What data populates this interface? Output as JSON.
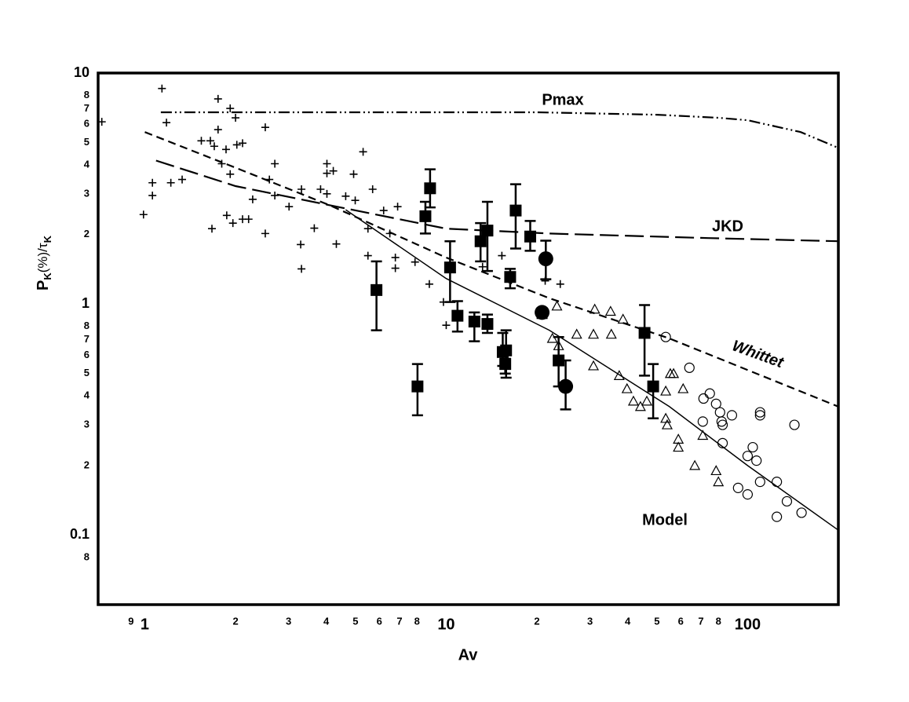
{
  "chart_data": {
    "type": "scatter",
    "xlabel": "Av",
    "ylabel": [
      "P",
      "K",
      "(%)/τ",
      "K"
    ],
    "log_x": true,
    "log_y": true,
    "grid": false,
    "xlim": [
      0.7,
      200
    ],
    "ylim": [
      0.05,
      10
    ],
    "xticks": [
      {
        "value": 0.9,
        "label": "9"
      },
      1,
      2,
      3,
      4,
      5,
      6,
      7,
      8,
      10,
      {
        "value": 20,
        "label": "2"
      },
      {
        "value": 30,
        "label": "3"
      },
      {
        "value": 40,
        "label": "4"
      },
      {
        "value": 50,
        "label": "5"
      },
      {
        "value": 60,
        "label": "6"
      },
      {
        "value": 70,
        "label": "7"
      },
      {
        "value": 80,
        "label": "8"
      },
      100
    ],
    "yticks": [
      {
        "value": 0.08,
        "label": "8"
      },
      0.1,
      {
        "value": 0.2,
        "label": "2"
      },
      {
        "value": 0.3,
        "label": "3"
      },
      {
        "value": 0.4,
        "label": "4"
      },
      {
        "value": 0.5,
        "label": "5"
      },
      {
        "value": 0.6,
        "label": "6"
      },
      {
        "value": 0.7,
        "label": "7"
      },
      {
        "value": 0.8,
        "label": "8"
      },
      1,
      2,
      3,
      4,
      5,
      6,
      7,
      8,
      10
    ],
    "series": [
      {
        "marker": "plus",
        "color": "#000000",
        "x": [
          0.72,
          0.99,
          1.06,
          1.06,
          1.14,
          1.18,
          1.22,
          1.33,
          1.54,
          1.65,
          1.67,
          1.7,
          1.75,
          1.75,
          1.8,
          1.86,
          1.87,
          1.92,
          1.92,
          1.96,
          2.0,
          2.02,
          2.11,
          2.11,
          2.21,
          2.28,
          2.51,
          2.51,
          2.59,
          2.7,
          2.7,
          3.01,
          3.29,
          3.31,
          3.31,
          3.65,
          3.83,
          4.02,
          4.02,
          4.02,
          4.22,
          4.32,
          4.64,
          4.93,
          4.99,
          5.3,
          5.5,
          5.5,
          5.7,
          6.2,
          6.5,
          6.78,
          6.78,
          6.9,
          7.88,
          8.79,
          9.79,
          10.0,
          13.2,
          15.3,
          21.3,
          23.9
        ],
        "values": [
          6.15,
          2.44,
          3.35,
          2.95,
          8.57,
          6.1,
          3.35,
          3.46,
          5.09,
          5.09,
          2.12,
          4.82,
          7.73,
          5.69,
          4.05,
          4.67,
          2.42,
          7.03,
          3.65,
          2.24,
          6.4,
          4.89,
          4.97,
          2.33,
          2.33,
          2.84,
          5.82,
          2.02,
          3.46,
          4.05,
          2.95,
          2.64,
          1.81,
          3.14,
          1.42,
          2.13,
          3.14,
          4.05,
          3.68,
          3.0,
          3.77,
          1.82,
          2.93,
          3.65,
          2.81,
          4.56,
          2.12,
          1.62,
          3.14,
          2.54,
          2.02,
          1.59,
          1.43,
          2.64,
          1.52,
          1.22,
          1.02,
          0.81,
          1.45,
          1.62,
          1.26,
          1.22
        ]
      },
      {
        "marker": "square",
        "color": "#000000",
        "x": [
          5.87,
          8.03,
          8.53,
          8.84,
          10.3,
          10.9,
          12.4,
          13.0,
          13.7,
          13.7,
          15.4,
          15.8,
          15.7,
          16.3,
          17.0,
          19.0,
          23.6,
          45.5,
          48.6
        ],
        "values": [
          1.15,
          0.44,
          2.4,
          3.17,
          1.44,
          0.89,
          0.84,
          1.87,
          2.08,
          0.82,
          0.62,
          0.63,
          0.55,
          1.31,
          2.54,
          1.96,
          0.57,
          0.75,
          0.44
        ],
        "err_low": [
          0.77,
          0.33,
          2.02,
          2.62,
          1.02,
          0.76,
          0.69,
          1.53,
          1.39,
          0.75,
          0.54,
          0.48,
          0.5,
          1.17,
          1.74,
          1.7,
          0.44,
          0.49,
          0.32
        ],
        "err_high": [
          1.53,
          0.55,
          2.77,
          3.83,
          1.87,
          1.03,
          0.92,
          2.24,
          2.77,
          0.9,
          0.75,
          0.77,
          0.58,
          1.42,
          3.3,
          2.29,
          0.72,
          0.99,
          0.55
        ]
      },
      {
        "marker": "circle",
        "color": "#000000",
        "x": [
          21.4,
          20.8,
          24.9
        ],
        "values": [
          1.57,
          0.92,
          0.44
        ],
        "err_low": [
          1.28,
          0.87,
          0.35
        ],
        "err_high": [
          1.88,
          0.95,
          0.57
        ]
      },
      {
        "marker": "triangle",
        "color": "#000000",
        "x": [
          23.3,
          22.5,
          23.6,
          27.1,
          30.8,
          31.1,
          35.1,
          35.3,
          37.5,
          38.6,
          30.8,
          39.8,
          41.8,
          44.1,
          46.3,
          53.5,
          55.4,
          56.8,
          53.5,
          54.1,
          58.9,
          61.1,
          66.8,
          71.0,
          78.6,
          80.0,
          58.9
        ],
        "values": [
          0.98,
          0.71,
          0.66,
          0.74,
          0.74,
          0.95,
          0.93,
          0.74,
          0.49,
          0.86,
          0.54,
          0.43,
          0.38,
          0.36,
          0.38,
          0.42,
          0.5,
          0.5,
          0.32,
          0.3,
          0.24,
          0.43,
          0.2,
          0.27,
          0.19,
          0.17,
          0.26
        ]
      },
      {
        "marker": "open-circle",
        "color": "#000000",
        "x": [
          53.5,
          64.1,
          71.4,
          74.9,
          71.0,
          78.6,
          81.0,
          82.0,
          82.6,
          82.6,
          88.7,
          93.0,
          100,
          104,
          100,
          107,
          110,
          110,
          110,
          125,
          125,
          135,
          143,
          151
        ],
        "values": [
          0.72,
          0.53,
          0.39,
          0.41,
          0.31,
          0.37,
          0.34,
          0.31,
          0.3,
          0.25,
          0.33,
          0.16,
          0.15,
          0.24,
          0.22,
          0.21,
          0.34,
          0.33,
          0.17,
          0.17,
          0.12,
          0.14,
          0.3,
          0.125
        ]
      },
      {
        "name": "Pmax",
        "line_style": "dash-dot",
        "color": "#000000",
        "x": [
          1.13,
          5,
          20,
          50,
          80,
          100,
          150,
          200
        ],
        "values": [
          6.76,
          6.76,
          6.76,
          6.6,
          6.4,
          6.25,
          5.55,
          4.74
        ]
      },
      {
        "name": "JKD",
        "line_style": "long-dash",
        "color": "#000000",
        "x": [
          1.09,
          2,
          4.1,
          10,
          22,
          74,
          200
        ],
        "values": [
          4.18,
          3.24,
          2.68,
          2.12,
          2.02,
          1.93,
          1.87
        ]
      },
      {
        "name": "Whittet",
        "line_style": "short-dash",
        "color": "#000000",
        "x": [
          1.0,
          2,
          4.1,
          10,
          22,
          55,
          200
        ],
        "values": [
          5.55,
          3.89,
          2.68,
          1.59,
          1.06,
          0.71,
          0.36
        ]
      },
      {
        "name": "Model",
        "line_style": "solid",
        "color": "#000000",
        "x": [
          4.64,
          10,
          22,
          55,
          100,
          200
        ],
        "values": [
          2.56,
          1.29,
          0.77,
          0.36,
          0.2,
          0.105
        ]
      }
    ]
  }
}
